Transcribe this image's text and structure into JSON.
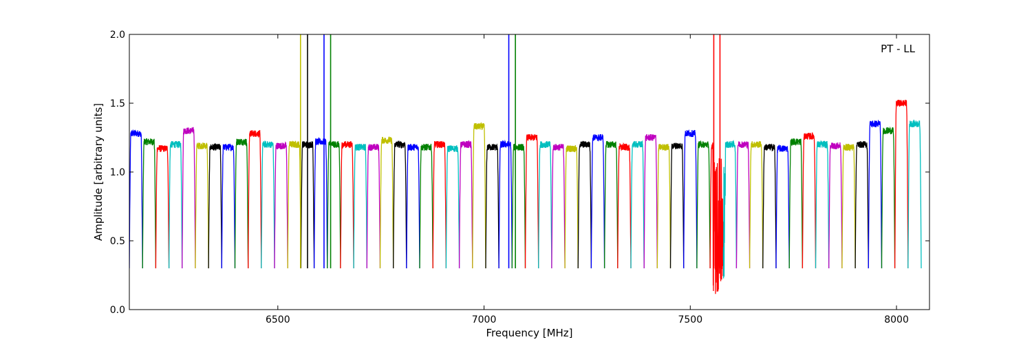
{
  "chart_data": {
    "type": "line",
    "xlabel": "Frequency [MHz]",
    "ylabel": "Amplitude [arbitrary units]",
    "annotation": "PT - LL",
    "xlim": [
      6140,
      8080
    ],
    "ylim": [
      0.0,
      2.0
    ],
    "x_ticks": [
      6500,
      7000,
      7500,
      8000
    ],
    "x_tick_labels": [
      "6500",
      "7000",
      "7500",
      "8000"
    ],
    "y_ticks": [
      0.0,
      0.5,
      1.0,
      1.5,
      2.0
    ],
    "y_tick_labels": [
      "0.0",
      "0.5",
      "1.0",
      "1.5",
      "2.0"
    ],
    "grid": false,
    "legend": "none",
    "color_cycle": [
      "#0000ff",
      "#008000",
      "#ff0000",
      "#00bfbf",
      "#bf00bf",
      "#bfbf00",
      "#000000"
    ],
    "flagged_color": "#bfbfbf",
    "channel_width_mhz": 32,
    "segment_start_mhz": 6140,
    "segment_count": 60,
    "segment_passband_levels": [
      1.28,
      1.22,
      1.17,
      1.2,
      1.3,
      1.19,
      1.18,
      1.18,
      1.22,
      1.28,
      1.2,
      1.19,
      1.2,
      1.2,
      1.22,
      1.2,
      1.2,
      1.18,
      1.18,
      1.23,
      1.2,
      1.18,
      1.18,
      1.2,
      1.17,
      1.2,
      1.33,
      1.18,
      1.2,
      1.18,
      1.25,
      1.2,
      1.18,
      1.17,
      1.2,
      1.25,
      1.2,
      1.18,
      1.2,
      1.25,
      1.18,
      1.19,
      1.28,
      1.2,
      1.19,
      1.2,
      1.2,
      1.2,
      1.18,
      1.17,
      1.22,
      1.26,
      1.2,
      1.19,
      1.18,
      1.2,
      1.35,
      1.3,
      1.5,
      1.35
    ],
    "segment_band_floor": 0.3,
    "rfi_spikes_mhz": [
      6555,
      6572,
      6612,
      6628,
      7060,
      7076,
      7557,
      7572
    ],
    "noisy_region_mhz": [
      7555,
      7585
    ]
  }
}
